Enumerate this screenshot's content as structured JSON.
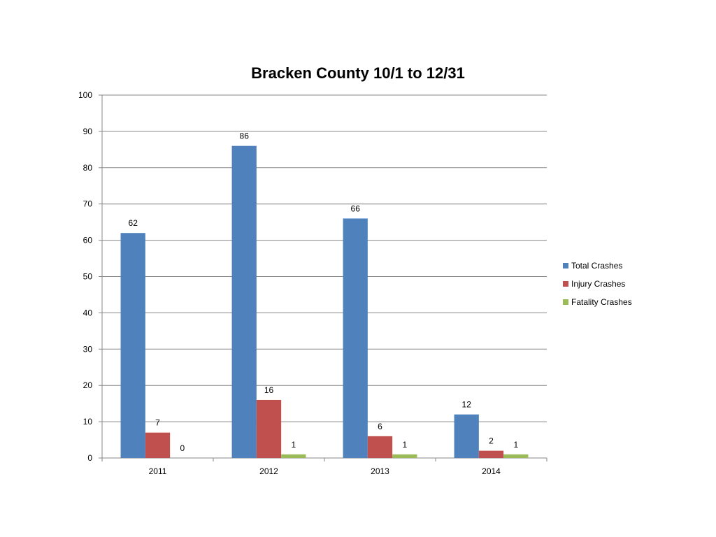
{
  "chart_data": {
    "type": "bar",
    "title": "Bracken County 10/1 to 12/31",
    "xlabel": "",
    "ylabel": "",
    "categories": [
      "2011",
      "2012",
      "2013",
      "2014"
    ],
    "ylim": [
      0,
      100
    ],
    "yticks": [
      0,
      10,
      20,
      30,
      40,
      50,
      60,
      70,
      80,
      90,
      100
    ],
    "grid": true,
    "legend_position": "right",
    "series": [
      {
        "name": "Total Crashes",
        "values": [
          62,
          86,
          66,
          12
        ],
        "color": "#4F81BD"
      },
      {
        "name": "Injury Crashes",
        "values": [
          7,
          16,
          6,
          2
        ],
        "color": "#C0504D"
      },
      {
        "name": "Fatality Crashes",
        "values": [
          0,
          1,
          1,
          1
        ],
        "color": "#9BBB59"
      }
    ]
  }
}
